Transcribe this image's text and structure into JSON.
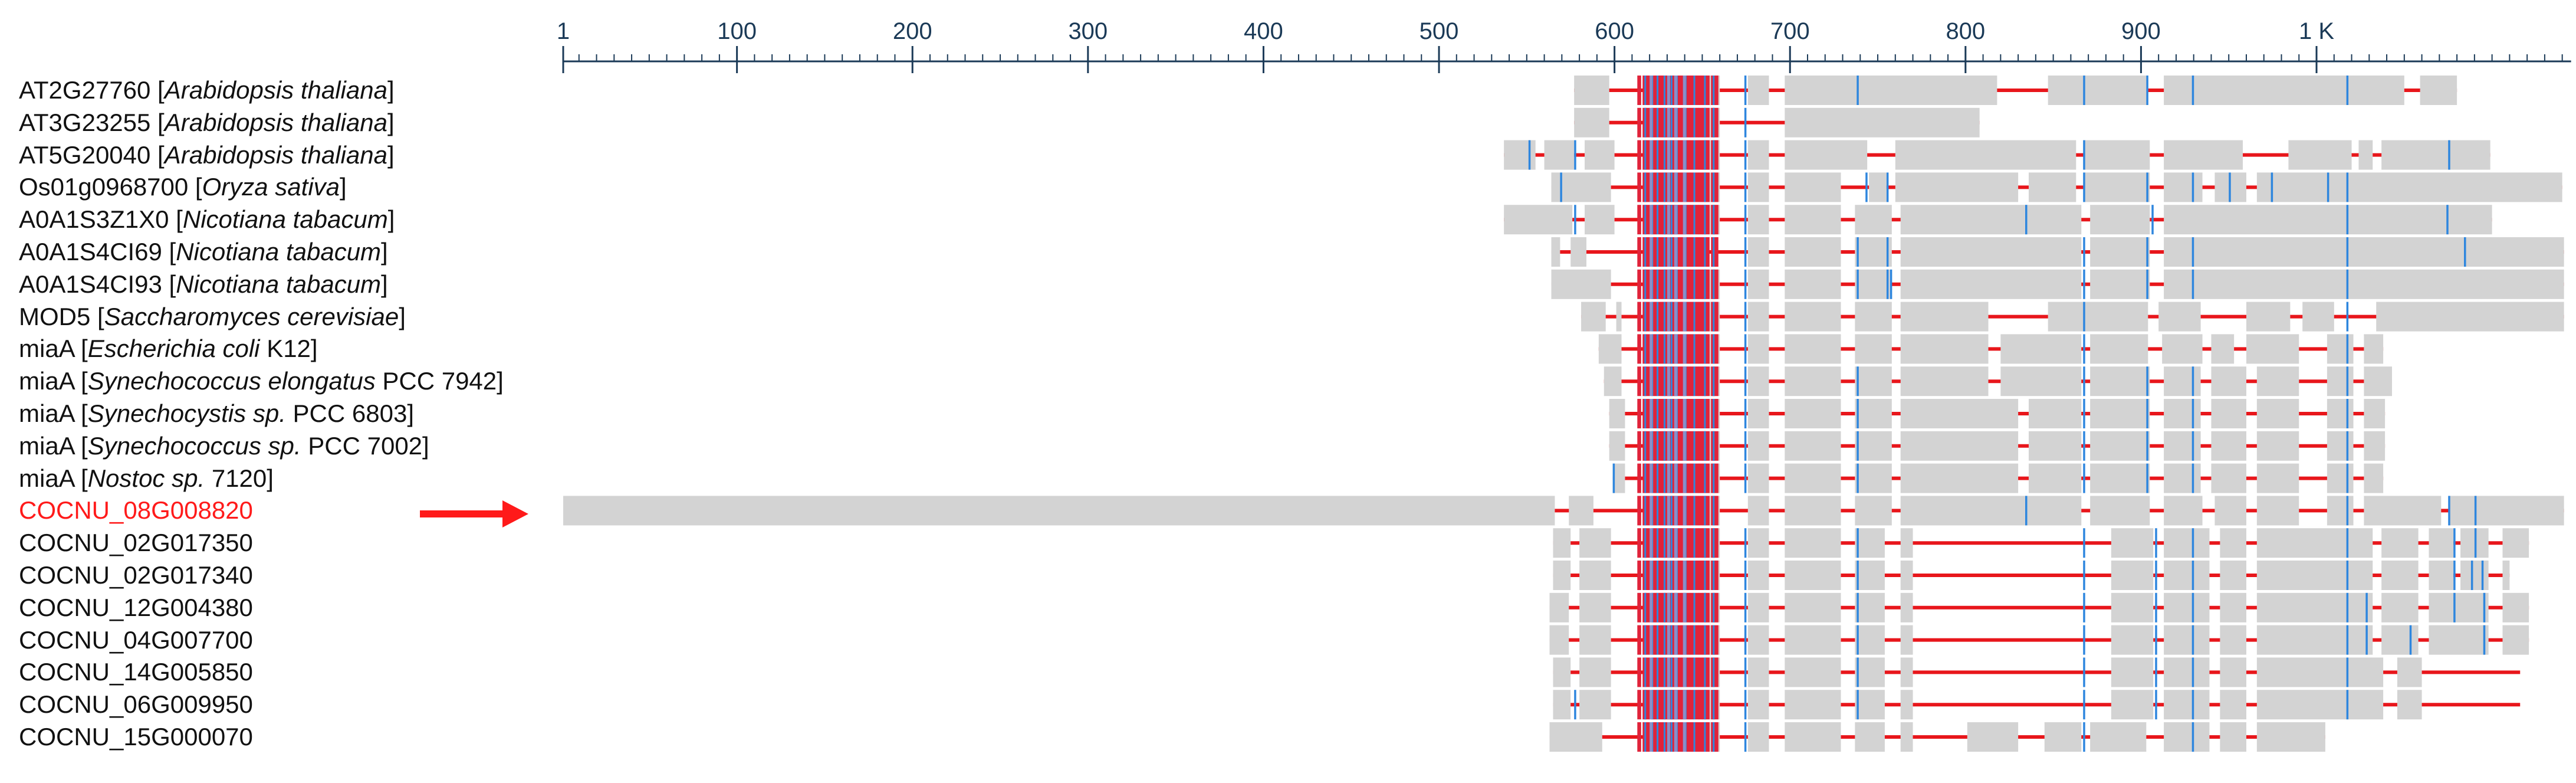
{
  "ruler": {
    "ticks": [
      {
        "pos": 1,
        "label": "1"
      },
      {
        "pos": 100,
        "label": "100"
      },
      {
        "pos": 200,
        "label": "200"
      },
      {
        "pos": 300,
        "label": "300"
      },
      {
        "pos": 400,
        "label": "400"
      },
      {
        "pos": 500,
        "label": "500"
      },
      {
        "pos": 600,
        "label": "600"
      },
      {
        "pos": 700,
        "label": "700"
      },
      {
        "pos": 800,
        "label": "800"
      },
      {
        "pos": 900,
        "label": "900"
      },
      {
        "pos": 1000,
        "label": "1 K"
      }
    ],
    "max_position": 1141
  },
  "colors": {
    "ruler": "#1b3a57",
    "aligned_block": "#d3d3d3",
    "gap_line": "#e8161b",
    "conserved_column": "#e0233a",
    "variable_column": "#2e86de",
    "mixed_column": "#8a8fc8",
    "query_label": "#ff1a1a",
    "arrow": "#ff1a1a"
  },
  "sequences": [
    {
      "id": "AT2G27760",
      "species": "Arabidopsis thaliana",
      "strain": "",
      "highlight": false,
      "start": 577,
      "end": 1080,
      "blocks": [
        [
          577,
          597
        ],
        [
          621,
          660
        ],
        [
          676,
          688
        ],
        [
          697,
          818
        ],
        [
          847,
          904
        ],
        [
          913,
          1050
        ],
        [
          1059,
          1080
        ]
      ],
      "var": [
        674,
        738,
        867,
        903,
        929,
        1017
      ]
    },
    {
      "id": "AT3G23255",
      "species": "Arabidopsis thaliana",
      "strain": "",
      "highlight": false,
      "start": 577,
      "end": 808,
      "blocks": [
        [
          577,
          597
        ],
        [
          621,
          660
        ],
        [
          697,
          808
        ]
      ],
      "var": [
        674
      ]
    },
    {
      "id": "AT5G20040",
      "species": "Arabidopsis thaliana",
      "strain": "",
      "highlight": false,
      "start": 537,
      "end": 1099,
      "blocks": [
        [
          537,
          555
        ],
        [
          560,
          577
        ],
        [
          583,
          600
        ],
        [
          621,
          660
        ],
        [
          676,
          688
        ],
        [
          697,
          744
        ],
        [
          760,
          863
        ],
        [
          868,
          905
        ],
        [
          913,
          958
        ],
        [
          984,
          1020
        ],
        [
          1024,
          1032
        ],
        [
          1037,
          1099
        ]
      ],
      "var": [
        551,
        577,
        674,
        867,
        1075
      ]
    },
    {
      "id": "Os01g0968700",
      "species": "Oryza sativa",
      "strain": "",
      "highlight": false,
      "start": 564,
      "end": 1140,
      "blocks": [
        [
          564,
          598
        ],
        [
          621,
          660
        ],
        [
          676,
          688
        ],
        [
          697,
          729
        ],
        [
          745,
          755
        ],
        [
          760,
          830
        ],
        [
          836,
          863
        ],
        [
          868,
          905
        ],
        [
          913,
          935
        ],
        [
          942,
          960
        ],
        [
          966,
          1140
        ]
      ],
      "var": [
        569,
        674,
        743,
        755,
        867,
        903,
        929,
        950,
        974,
        1006,
        1017
      ]
    },
    {
      "id": "A0A1S3Z1X0",
      "species": "Nicotiana tabacum",
      "strain": "",
      "highlight": false,
      "start": 537,
      "end": 1100,
      "blocks": [
        [
          537,
          576
        ],
        [
          583,
          600
        ],
        [
          621,
          660
        ],
        [
          676,
          688
        ],
        [
          697,
          729
        ],
        [
          737,
          758
        ],
        [
          763,
          866
        ],
        [
          871,
          905
        ],
        [
          913,
          1100
        ]
      ],
      "var": [
        577,
        674,
        834,
        906,
        1017,
        1074
      ]
    },
    {
      "id": "A0A1S4CI69",
      "species": "Nicotiana tabacum",
      "strain": "",
      "highlight": false,
      "start": 564,
      "end": 1141,
      "blocks": [
        [
          564,
          569
        ],
        [
          575,
          584
        ],
        [
          621,
          650
        ],
        [
          676,
          688
        ],
        [
          697,
          729
        ],
        [
          737,
          758
        ],
        [
          763,
          866
        ],
        [
          871,
          905
        ],
        [
          913,
          1141
        ]
      ],
      "var": [
        674,
        738,
        755,
        867,
        903,
        929,
        1017,
        1084
      ]
    },
    {
      "id": "A0A1S4CI93",
      "species": "Nicotiana tabacum",
      "strain": "",
      "highlight": false,
      "start": 564,
      "end": 1141,
      "blocks": [
        [
          564,
          598
        ],
        [
          621,
          660
        ],
        [
          676,
          688
        ],
        [
          697,
          729
        ],
        [
          737,
          758
        ],
        [
          763,
          866
        ],
        [
          871,
          905
        ],
        [
          913,
          1141
        ]
      ],
      "var": [
        674,
        738,
        755,
        757,
        867,
        903,
        929,
        1017
      ]
    },
    {
      "id": "MOD5",
      "species": "Saccharomyces cerevisiae",
      "strain": "",
      "highlight": false,
      "start": 581,
      "end": 1141,
      "blocks": [
        [
          581,
          595
        ],
        [
          601,
          604
        ],
        [
          621,
          660
        ],
        [
          676,
          688
        ],
        [
          697,
          729
        ],
        [
          737,
          758
        ],
        [
          763,
          813
        ],
        [
          847,
          904
        ],
        [
          910,
          934
        ],
        [
          960,
          985
        ],
        [
          992,
          1010
        ],
        [
          1034,
          1141
        ]
      ],
      "var": [
        674,
        867,
        1017
      ]
    },
    {
      "id": "miaA",
      "species": "Escherichia coli",
      "strain": "K12",
      "highlight": false,
      "start": 591,
      "end": 1038,
      "blocks": [
        [
          591,
          604
        ],
        [
          621,
          660
        ],
        [
          676,
          688
        ],
        [
          697,
          729
        ],
        [
          737,
          758
        ],
        [
          763,
          813
        ],
        [
          820,
          866
        ],
        [
          871,
          904
        ],
        [
          912,
          935
        ],
        [
          940,
          953
        ],
        [
          960,
          990
        ],
        [
          1006,
          1021
        ],
        [
          1027,
          1038
        ]
      ],
      "var": [
        674,
        867,
        1017
      ]
    },
    {
      "id": "miaA",
      "species": "Synechococcus elongatus",
      "strain": "PCC 7942",
      "highlight": false,
      "start": 594,
      "end": 1043,
      "blocks": [
        [
          594,
          604
        ],
        [
          621,
          660
        ],
        [
          676,
          688
        ],
        [
          697,
          729
        ],
        [
          737,
          758
        ],
        [
          763,
          813
        ],
        [
          820,
          866
        ],
        [
          871,
          905
        ],
        [
          913,
          934
        ],
        [
          940,
          960
        ],
        [
          966,
          990
        ],
        [
          1006,
          1021
        ],
        [
          1027,
          1043
        ]
      ],
      "var": [
        674,
        738,
        867,
        903,
        929,
        1017
      ]
    },
    {
      "id": "miaA",
      "species": "Synechocystis sp.",
      "strain": "PCC 6803",
      "highlight": false,
      "start": 597,
      "end": 1039,
      "blocks": [
        [
          597,
          606
        ],
        [
          621,
          660
        ],
        [
          676,
          688
        ],
        [
          697,
          729
        ],
        [
          737,
          758
        ],
        [
          763,
          830
        ],
        [
          836,
          866
        ],
        [
          871,
          905
        ],
        [
          913,
          934
        ],
        [
          940,
          960
        ],
        [
          966,
          990
        ],
        [
          1006,
          1021
        ],
        [
          1027,
          1039
        ]
      ],
      "var": [
        674,
        738,
        867,
        903,
        929,
        1017
      ]
    },
    {
      "id": "miaA",
      "species": "Synechococcus sp.",
      "strain": "PCC 7002",
      "highlight": false,
      "start": 597,
      "end": 1039,
      "blocks": [
        [
          597,
          606
        ],
        [
          621,
          660
        ],
        [
          676,
          688
        ],
        [
          697,
          729
        ],
        [
          737,
          758
        ],
        [
          763,
          830
        ],
        [
          836,
          866
        ],
        [
          871,
          905
        ],
        [
          913,
          934
        ],
        [
          940,
          960
        ],
        [
          966,
          990
        ],
        [
          1006,
          1021
        ],
        [
          1027,
          1039
        ]
      ],
      "var": [
        674,
        738,
        867,
        903,
        929,
        1017
      ]
    },
    {
      "id": "miaA",
      "species": "Nostoc sp.",
      "strain": "7120",
      "highlight": false,
      "start": 599,
      "end": 1038,
      "blocks": [
        [
          599,
          606
        ],
        [
          621,
          660
        ],
        [
          676,
          688
        ],
        [
          697,
          729
        ],
        [
          737,
          758
        ],
        [
          763,
          830
        ],
        [
          836,
          866
        ],
        [
          871,
          905
        ],
        [
          913,
          934
        ],
        [
          940,
          960
        ],
        [
          966,
          990
        ],
        [
          1006,
          1021
        ],
        [
          1027,
          1038
        ]
      ],
      "var": [
        599,
        674,
        738,
        867,
        903,
        929,
        1017
      ]
    },
    {
      "id": "COCNU_08G008820",
      "species": "",
      "strain": "",
      "highlight": true,
      "start": 1,
      "end": 1141,
      "blocks": [
        [
          1,
          566
        ],
        [
          574,
          588
        ],
        [
          621,
          660
        ],
        [
          676,
          688
        ],
        [
          697,
          729
        ],
        [
          737,
          758
        ],
        [
          763,
          866
        ],
        [
          871,
          905
        ],
        [
          913,
          935
        ],
        [
          942,
          960
        ],
        [
          966,
          990
        ],
        [
          1006,
          1021
        ],
        [
          1027,
          1071
        ],
        [
          1076,
          1141
        ]
      ],
      "var": [
        834,
        1017,
        1075,
        1090
      ]
    },
    {
      "id": "COCNU_02G017350",
      "species": "",
      "strain": "",
      "highlight": false,
      "start": 565,
      "end": 1121,
      "blocks": [
        [
          565,
          575
        ],
        [
          580,
          598
        ],
        [
          621,
          660
        ],
        [
          676,
          688
        ],
        [
          697,
          729
        ],
        [
          737,
          754
        ],
        [
          763,
          770
        ],
        [
          883,
          907
        ],
        [
          913,
          939
        ],
        [
          945,
          960
        ],
        [
          966,
          1032
        ],
        [
          1037,
          1058
        ],
        [
          1064,
          1078
        ],
        [
          1082,
          1098
        ],
        [
          1106,
          1121
        ]
      ],
      "var": [
        674,
        738,
        867,
        908,
        929,
        1017,
        1078,
        1090
      ]
    },
    {
      "id": "COCNU_02G017340",
      "species": "",
      "strain": "",
      "highlight": false,
      "start": 565,
      "end": 1110,
      "blocks": [
        [
          565,
          575
        ],
        [
          580,
          598
        ],
        [
          621,
          660
        ],
        [
          676,
          688
        ],
        [
          697,
          729
        ],
        [
          737,
          754
        ],
        [
          763,
          770
        ],
        [
          883,
          907
        ],
        [
          913,
          939
        ],
        [
          945,
          960
        ],
        [
          966,
          1032
        ],
        [
          1037,
          1058
        ],
        [
          1064,
          1078
        ],
        [
          1082,
          1098
        ],
        [
          1106,
          1110
        ]
      ],
      "var": [
        674,
        738,
        867,
        908,
        929,
        1017,
        1078,
        1088,
        1094
      ]
    },
    {
      "id": "COCNU_12G004380",
      "species": "",
      "strain": "",
      "highlight": false,
      "start": 563,
      "end": 1121,
      "blocks": [
        [
          563,
          574
        ],
        [
          580,
          598
        ],
        [
          621,
          660
        ],
        [
          676,
          688
        ],
        [
          697,
          729
        ],
        [
          737,
          754
        ],
        [
          763,
          770
        ],
        [
          883,
          907
        ],
        [
          913,
          939
        ],
        [
          945,
          960
        ],
        [
          966,
          1032
        ],
        [
          1037,
          1058
        ],
        [
          1064,
          1098
        ],
        [
          1106,
          1121
        ]
      ],
      "var": [
        674,
        738,
        867,
        908,
        929,
        1017,
        1028,
        1078,
        1095
      ]
    },
    {
      "id": "COCNU_04G007700",
      "species": "",
      "strain": "",
      "highlight": false,
      "start": 563,
      "end": 1121,
      "blocks": [
        [
          563,
          574
        ],
        [
          580,
          598
        ],
        [
          621,
          660
        ],
        [
          676,
          688
        ],
        [
          697,
          729
        ],
        [
          737,
          754
        ],
        [
          763,
          770
        ],
        [
          883,
          907
        ],
        [
          913,
          939
        ],
        [
          945,
          960
        ],
        [
          966,
          1032
        ],
        [
          1037,
          1058
        ],
        [
          1064,
          1098
        ],
        [
          1106,
          1121
        ]
      ],
      "var": [
        674,
        738,
        867,
        908,
        929,
        1017,
        1028,
        1053,
        1095
      ]
    },
    {
      "id": "COCNU_14G005850",
      "species": "",
      "strain": "",
      "highlight": false,
      "start": 565,
      "end": 1116,
      "blocks": [
        [
          565,
          575
        ],
        [
          580,
          598
        ],
        [
          621,
          660
        ],
        [
          676,
          688
        ],
        [
          697,
          729
        ],
        [
          737,
          754
        ],
        [
          763,
          770
        ],
        [
          883,
          907
        ],
        [
          913,
          939
        ],
        [
          945,
          960
        ],
        [
          966,
          1038
        ],
        [
          1046,
          1060
        ]
      ],
      "var": [
        674,
        738,
        867,
        908,
        929,
        1017
      ]
    },
    {
      "id": "COCNU_06G009950",
      "species": "",
      "strain": "",
      "highlight": false,
      "start": 565,
      "end": 1116,
      "blocks": [
        [
          565,
          575
        ],
        [
          580,
          598
        ],
        [
          621,
          660
        ],
        [
          676,
          688
        ],
        [
          697,
          729
        ],
        [
          737,
          754
        ],
        [
          763,
          770
        ],
        [
          883,
          907
        ],
        [
          913,
          939
        ],
        [
          945,
          960
        ],
        [
          966,
          1038
        ],
        [
          1046,
          1060
        ]
      ],
      "var": [
        577,
        674,
        738,
        867,
        908,
        929,
        1017
      ]
    },
    {
      "id": "COCNU_15G000070",
      "species": "",
      "strain": "",
      "highlight": false,
      "start": 563,
      "end": 1005,
      "blocks": [
        [
          563,
          593
        ],
        [
          621,
          660
        ],
        [
          676,
          688
        ],
        [
          697,
          729
        ],
        [
          737,
          754
        ],
        [
          763,
          770
        ],
        [
          801,
          830
        ],
        [
          845,
          866
        ],
        [
          871,
          903
        ],
        [
          913,
          939
        ],
        [
          945,
          960
        ],
        [
          966,
          1005
        ]
      ],
      "var": [
        674,
        867,
        929
      ]
    }
  ],
  "conserved_columns": [
    613,
    616,
    618,
    622,
    625,
    627,
    629,
    631,
    633,
    636,
    638,
    641,
    643,
    646,
    648,
    650,
    652,
    655,
    657
  ],
  "variable_columns": [
    617,
    621,
    624,
    628,
    632,
    635,
    640,
    645,
    651,
    656
  ],
  "mixed_columns": [
    620,
    630,
    634,
    639
  ]
}
